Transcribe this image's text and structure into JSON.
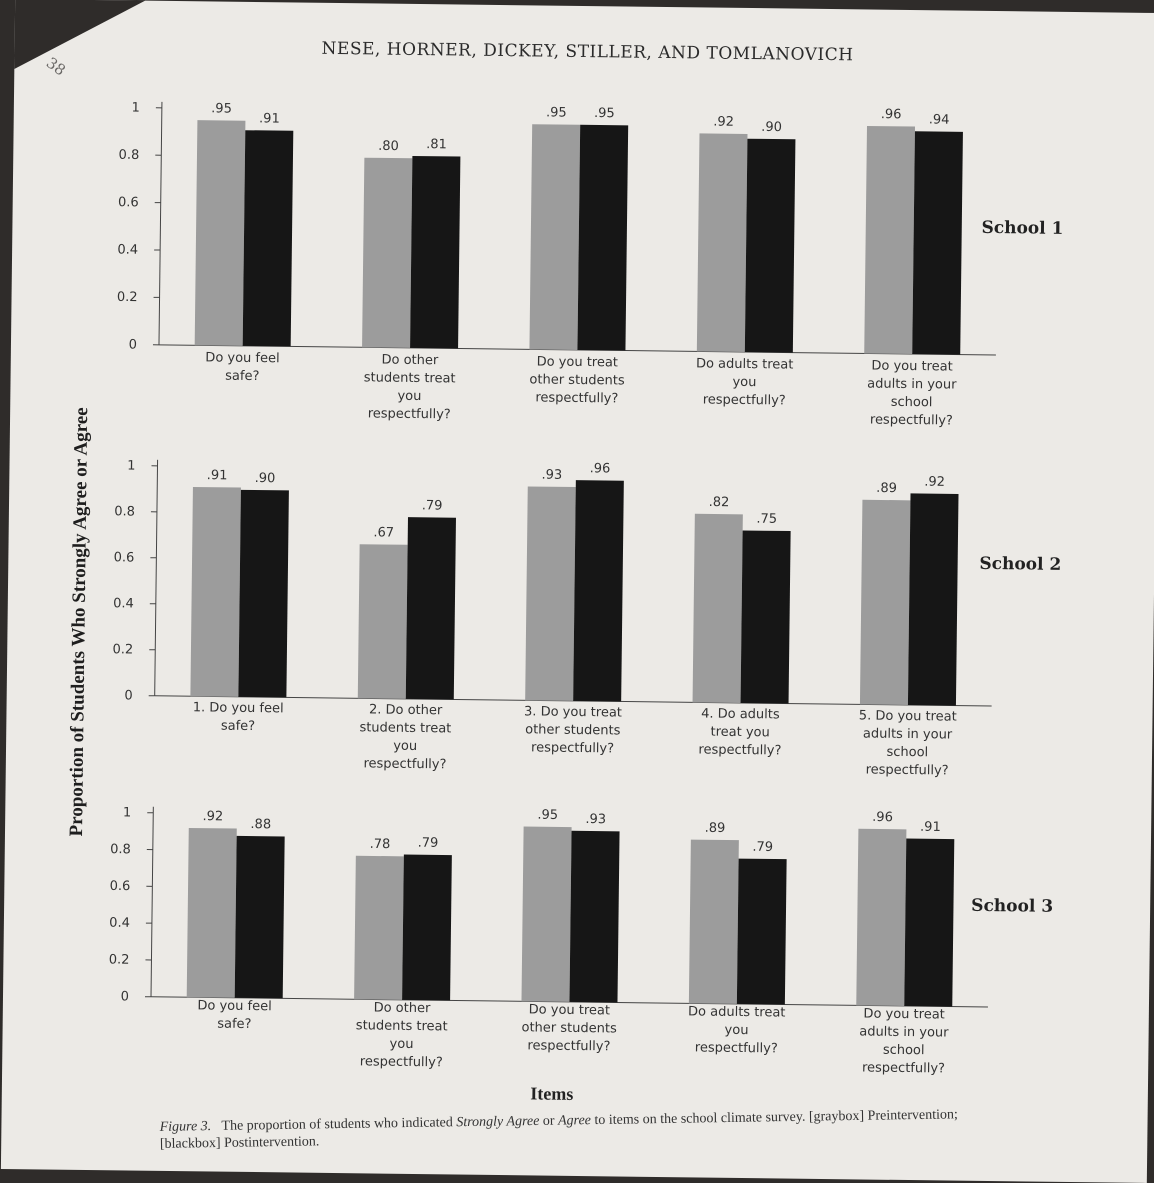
{
  "page": {
    "page_number": "38",
    "running_head": "NESE, HORNER, DICKEY, STILLER, AND TOMLANOVICH",
    "y_axis_title": "Proportion of Students Who Strongly Agree or Agree",
    "x_axis_title": "Items",
    "caption": {
      "figure_label": "Figure 3.",
      "text_before": "The proportion of students who indicated",
      "strongly_agree": "Strongly Agree",
      "word_or": "or",
      "agree": "Agree",
      "text_after": "to items on the school climate survey. [graybox] Preintervention; [blackbox] Postintervention."
    }
  },
  "chart_data": [
    {
      "type": "bar",
      "panel_label": "School 1",
      "categories": [
        [
          "Do you feel",
          "safe?"
        ],
        [
          "Do other",
          "students treat",
          "you",
          "respectfully?"
        ],
        [
          "Do you treat",
          "other students",
          "respectfully?"
        ],
        [
          "Do adults treat",
          "you",
          "respectfully?"
        ],
        [
          "Do you treat",
          "adults in your",
          "school",
          "respectfully?"
        ]
      ],
      "series": [
        {
          "values": [
            0.95,
            0.8,
            0.95,
            0.92,
            0.96
          ],
          "labels": [
            ".95",
            ".80",
            ".95",
            ".92",
            ".96"
          ],
          "color": "#9c9c9c"
        },
        {
          "values": [
            0.91,
            0.81,
            0.95,
            0.9,
            0.94
          ],
          "labels": [
            ".91",
            ".81",
            ".95",
            ".90",
            ".94"
          ],
          "color": "#161616"
        }
      ],
      "ylim": [
        0,
        1
      ],
      "yticks": [
        "0",
        "0.2",
        "0.4",
        "0.6",
        "0.8",
        "1"
      ]
    },
    {
      "type": "bar",
      "panel_label": "School 2",
      "categories": [
        [
          "1. Do you feel",
          "safe?"
        ],
        [
          "2. Do other",
          "students treat",
          "you",
          "respectfully?"
        ],
        [
          "3. Do you treat",
          "other students",
          "respectfully?"
        ],
        [
          "4. Do adults",
          "treat you",
          "respectfully?"
        ],
        [
          "5. Do you treat",
          "adults in your",
          "school",
          "respectfully?"
        ]
      ],
      "series": [
        {
          "values": [
            0.91,
            0.67,
            0.93,
            0.82,
            0.89
          ],
          "labels": [
            ".91",
            ".67",
            ".93",
            ".82",
            ".89"
          ],
          "color": "#9c9c9c"
        },
        {
          "values": [
            0.9,
            0.79,
            0.96,
            0.75,
            0.92
          ],
          "labels": [
            ".90",
            ".79",
            ".96",
            ".75",
            ".92"
          ],
          "color": "#161616"
        }
      ],
      "ylim": [
        0,
        1
      ],
      "yticks": [
        "0",
        "0.2",
        "0.4",
        "0.6",
        "0.8",
        "1"
      ]
    },
    {
      "type": "bar",
      "panel_label": "School 3",
      "categories": [
        [
          "Do you feel",
          "safe?"
        ],
        [
          "Do other",
          "students treat",
          "you",
          "respectfully?"
        ],
        [
          "Do you treat",
          "other students",
          "respectfully?"
        ],
        [
          "Do adults treat",
          "you",
          "respectfully?"
        ],
        [
          "Do you treat",
          "adults in your",
          "school",
          "respectfully?"
        ]
      ],
      "series": [
        {
          "values": [
            0.92,
            0.78,
            0.95,
            0.89,
            0.96
          ],
          "labels": [
            ".92",
            ".78",
            ".95",
            ".89",
            ".96"
          ],
          "color": "#9c9c9c"
        },
        {
          "values": [
            0.88,
            0.79,
            0.93,
            0.79,
            0.91
          ],
          "labels": [
            ".88",
            ".79",
            ".93",
            ".79",
            ".91"
          ],
          "color": "#161616"
        }
      ],
      "ylim": [
        0,
        1
      ],
      "yticks": [
        "0",
        "0.2",
        "0.4",
        "0.6",
        "0.8",
        "1"
      ]
    }
  ]
}
